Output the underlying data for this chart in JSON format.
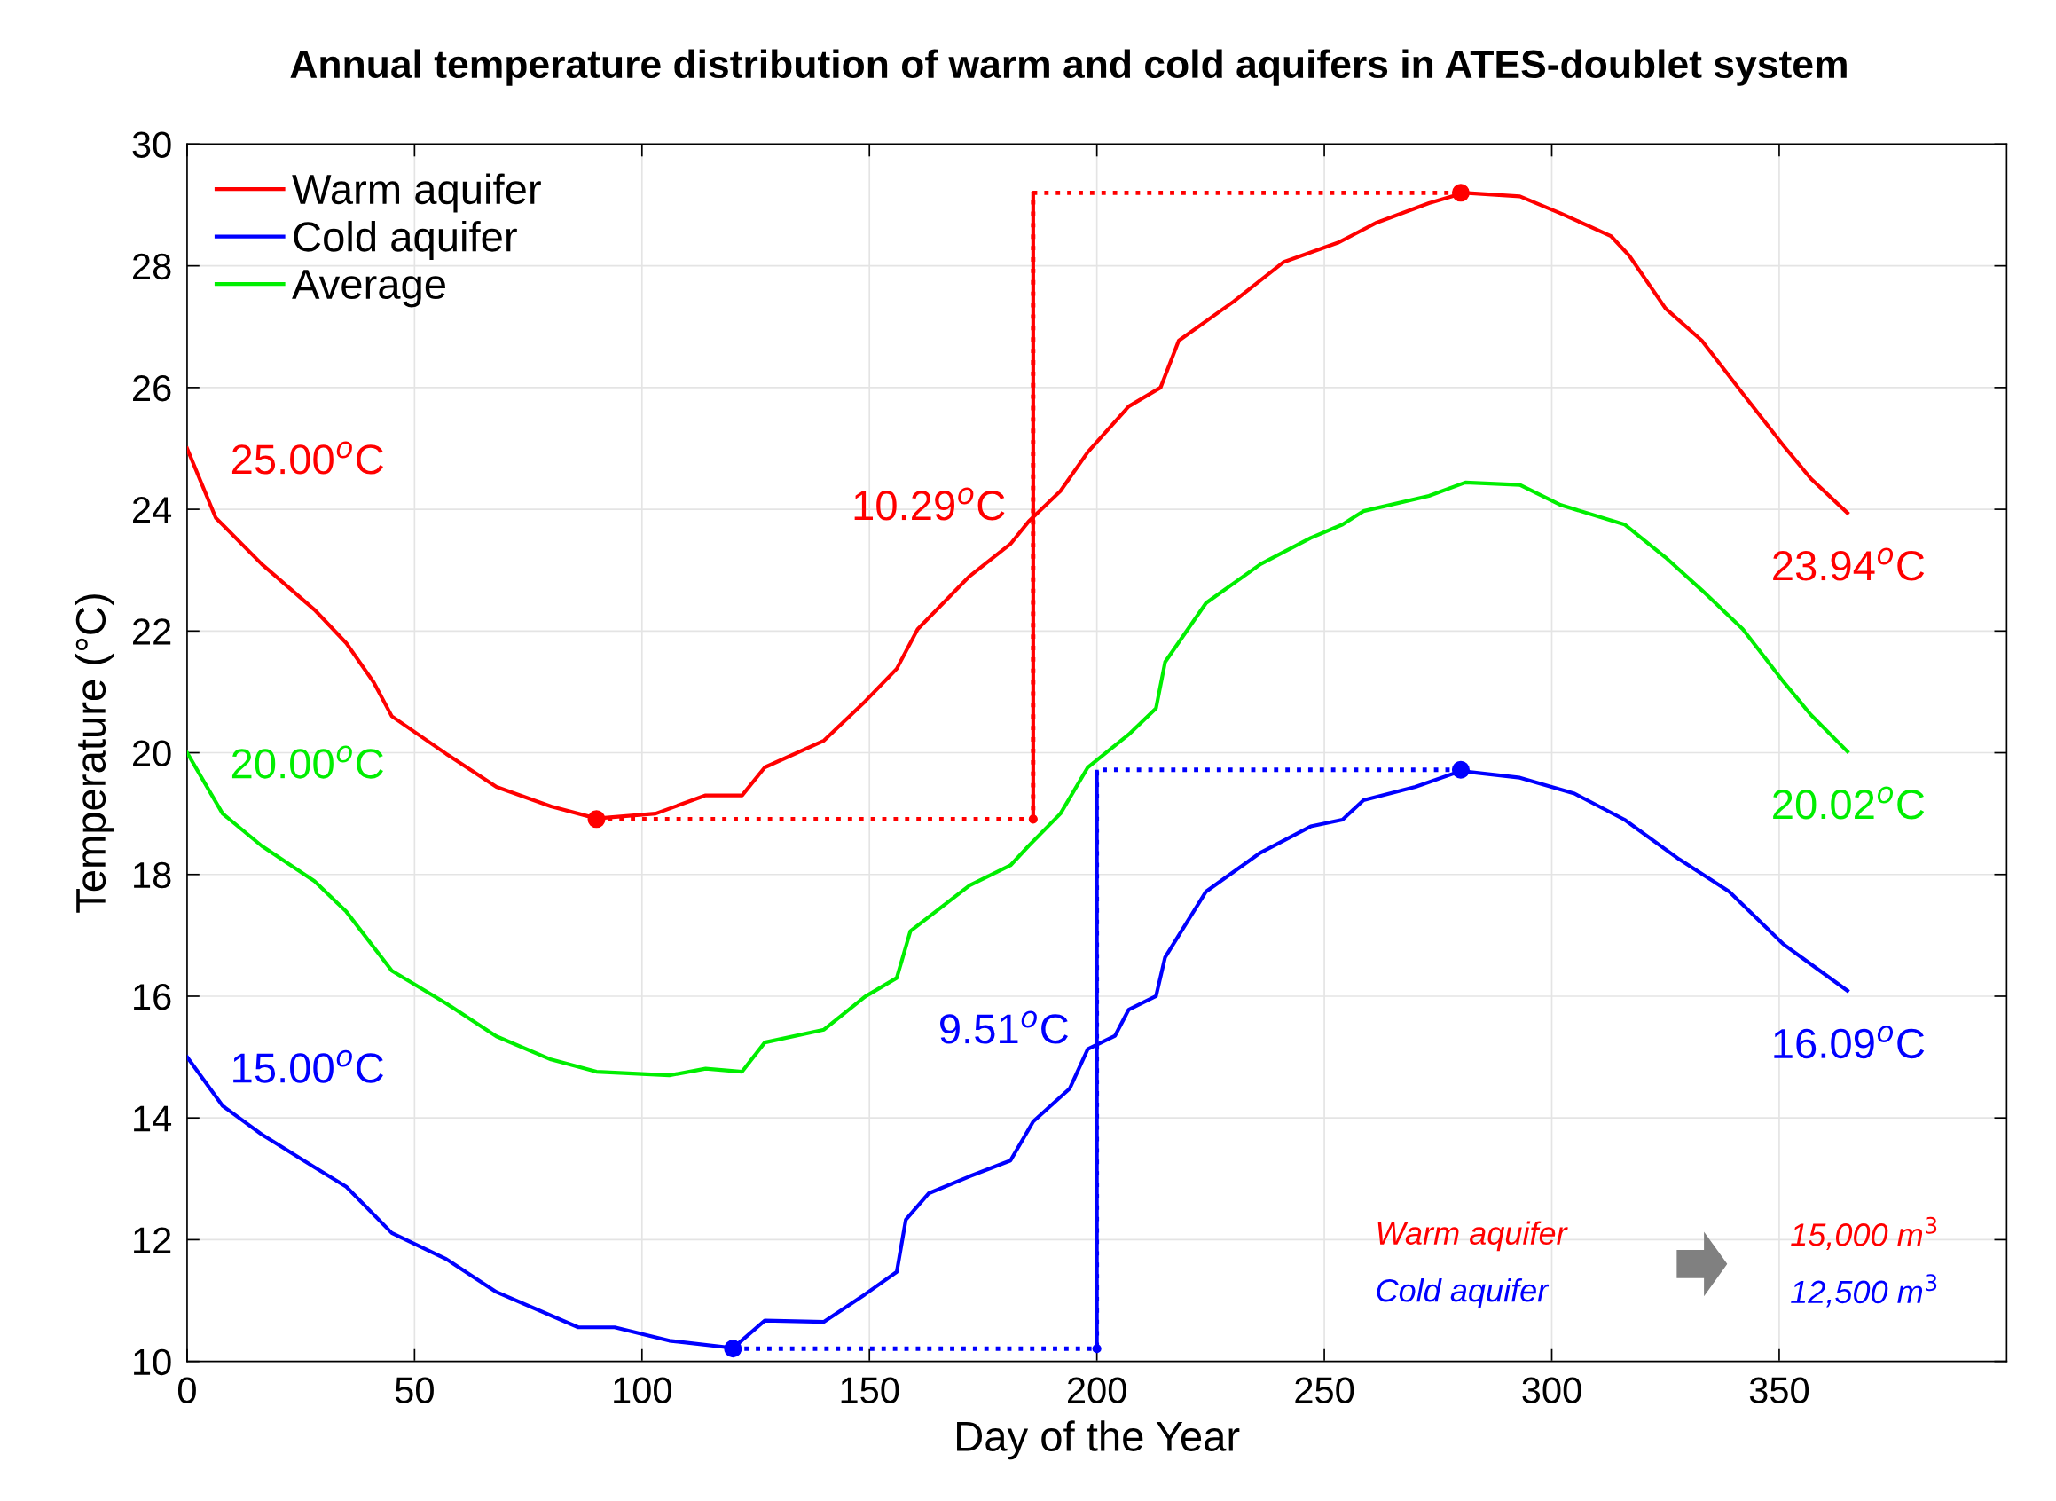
{
  "chart_data": {
    "type": "line",
    "title": "Annual temperature distribution of warm and cold aquifers in ATES-doublet system",
    "xlabel": "Day of the Year",
    "ylabel": "Temperature (°C)",
    "xlim": [
      0,
      400
    ],
    "ylim": [
      10,
      30
    ],
    "xticks": [
      0,
      50,
      100,
      150,
      200,
      250,
      300,
      350
    ],
    "yticks": [
      10,
      12,
      14,
      16,
      18,
      20,
      22,
      24,
      26,
      28,
      30
    ],
    "grid": true,
    "legend": "top left",
    "line_style": "solid",
    "series": [
      {
        "name": "Warm aquifer",
        "color": "#ff0000",
        "x": [
          0,
          6.3,
          16.4,
          28,
          35,
          41,
          45,
          57,
          68,
          80,
          90,
          103,
          114,
          122,
          127,
          140,
          149,
          156,
          160.6,
          172,
          181,
          185,
          192,
          198,
          207,
          214,
          218,
          230,
          241,
          253,
          261.5,
          273,
          280.8,
          293,
          302,
          313,
          317,
          325,
          333,
          342,
          351,
          357,
          365
        ],
        "values": [
          25.0,
          23.86,
          23.1,
          22.35,
          21.8,
          21.16,
          20.6,
          19.98,
          19.44,
          19.12,
          18.92,
          19.0,
          19.3,
          19.3,
          19.76,
          20.2,
          20.84,
          21.38,
          22.03,
          22.9,
          23.43,
          23.8,
          24.3,
          24.94,
          25.69,
          26.0,
          26.77,
          27.41,
          28.06,
          28.38,
          28.71,
          29.03,
          29.2,
          29.14,
          28.86,
          28.49,
          28.17,
          27.3,
          26.77,
          25.9,
          25.04,
          24.5,
          23.94
        ],
        "value_labels": [
          "25.00$^{o}$C",
          null,
          null,
          null,
          null,
          null,
          null,
          null,
          null,
          null,
          null,
          null,
          null,
          null,
          null,
          null,
          null,
          null,
          null,
          null,
          null,
          null,
          null,
          null,
          null,
          null,
          null,
          null,
          null,
          null,
          null,
          null,
          null,
          null,
          null,
          null,
          null,
          null,
          null,
          null,
          null,
          null,
          "23.94$^{o}$C"
        ]
      },
      {
        "name": "Cold aquifer",
        "color": "#0000ff",
        "x": [
          0,
          7.8,
          16.4,
          28,
          35,
          45,
          57,
          68,
          86,
          94,
          106,
          120,
          127,
          140,
          149,
          156,
          158,
          163,
          172,
          181,
          186,
          194,
          198,
          204,
          207,
          213,
          215,
          224,
          236,
          247,
          254,
          258.6,
          270,
          280,
          293,
          305,
          316,
          328,
          339,
          351,
          358,
          365
        ],
        "values": [
          15.0,
          14.2,
          13.73,
          13.19,
          12.87,
          12.11,
          11.68,
          11.14,
          10.56,
          10.56,
          10.34,
          10.22,
          10.67,
          10.65,
          11.1,
          11.47,
          12.33,
          12.76,
          13.04,
          13.3,
          13.94,
          14.48,
          15.13,
          15.35,
          15.78,
          16.0,
          16.64,
          17.72,
          18.36,
          18.79,
          18.9,
          19.22,
          19.44,
          19.7,
          19.59,
          19.33,
          18.9,
          18.25,
          17.72,
          16.85,
          16.47,
          16.09
        ],
        "value_labels": [
          "15.00$^{o}$C",
          null,
          null,
          null,
          null,
          null,
          null,
          null,
          null,
          null,
          null,
          null,
          null,
          null,
          null,
          null,
          null,
          null,
          null,
          null,
          null,
          null,
          null,
          null,
          null,
          null,
          null,
          null,
          null,
          null,
          null,
          null,
          null,
          null,
          null,
          null,
          null,
          null,
          null,
          null,
          null,
          "16.09$^{o}$C"
        ]
      },
      {
        "name": "Average",
        "color": "#00ee00",
        "x": [
          0,
          7.8,
          16.4,
          28,
          35,
          45,
          57,
          68,
          80,
          90,
          106,
          114,
          122,
          127,
          140,
          149,
          156,
          159,
          172,
          181,
          185,
          192,
          198,
          207,
          213,
          215,
          224,
          236,
          247,
          254,
          258.6,
          273,
          281,
          293,
          302,
          316,
          325,
          333,
          342,
          351,
          357,
          365
        ],
        "values": [
          20.0,
          19.0,
          18.47,
          17.89,
          17.39,
          16.42,
          15.88,
          15.34,
          14.96,
          14.76,
          14.7,
          14.81,
          14.76,
          15.24,
          15.45,
          15.99,
          16.3,
          17.07,
          17.82,
          18.15,
          18.47,
          19.0,
          19.76,
          20.3,
          20.73,
          21.49,
          22.46,
          23.1,
          23.53,
          23.75,
          23.97,
          24.22,
          24.44,
          24.4,
          24.07,
          23.75,
          23.21,
          22.67,
          22.03,
          21.16,
          20.62,
          20.02
        ],
        "value_labels": [
          "20.00$^{o}$C",
          null,
          null,
          null,
          null,
          null,
          null,
          null,
          null,
          null,
          null,
          null,
          null,
          null,
          null,
          null,
          null,
          null,
          null,
          null,
          null,
          null,
          null,
          null,
          null,
          null,
          null,
          null,
          null,
          null,
          null,
          null,
          null,
          null,
          null,
          null,
          null,
          null,
          null,
          null,
          null,
          "20.02$^{o}$C"
        ]
      },
      {
        "type": "line",
        "line_style": "dotted",
        "color": "#ff0000",
        "x": [
          90,
          186,
          186,
          280
        ],
        "values": [
          18.91,
          18.91,
          29.2,
          29.2
        ]
      },
      {
        "type": "line",
        "line_style": "dotted",
        "color": "#0000ff",
        "x": [
          120,
          200,
          200,
          280
        ],
        "values": [
          10.21,
          10.21,
          19.72,
          19.72
        ]
      },
      {
        "type": "scatter",
        "marker": "circle",
        "color": "#ff0000",
        "x": [
          186
        ],
        "values": [
          18.91
        ],
        "errors": [
          [
            18.91,
            29.2
          ]
        ]
      },
      {
        "type": "scatter",
        "marker": "circle",
        "color": "#0000ff",
        "x": [
          200
        ],
        "values": [
          10.21
        ],
        "errors": [
          [
            10.21,
            19.72
          ]
        ]
      },
      {
        "type": "scatter",
        "marker": "circle",
        "color": "#ff0000",
        "x": [
          90,
          280
        ],
        "values": [
          18.91,
          29.2
        ]
      },
      {
        "type": "scatter",
        "marker": "circle",
        "color": "#0000ff",
        "x": [
          120,
          280
        ],
        "values": [
          10.21,
          19.72
        ]
      }
    ],
    "annotations": [
      {
        "text": "10.29$^{o}$C",
        "x": 186,
        "y": 24.0
      },
      {
        "text": "9.51$^{o}$C",
        "x": 200,
        "y": 15.4
      },
      "Warm aquifer",
      "Cold aquifer",
      "15,000 m$^{3}$",
      "12,500 m$^{3}$"
    ]
  }
}
